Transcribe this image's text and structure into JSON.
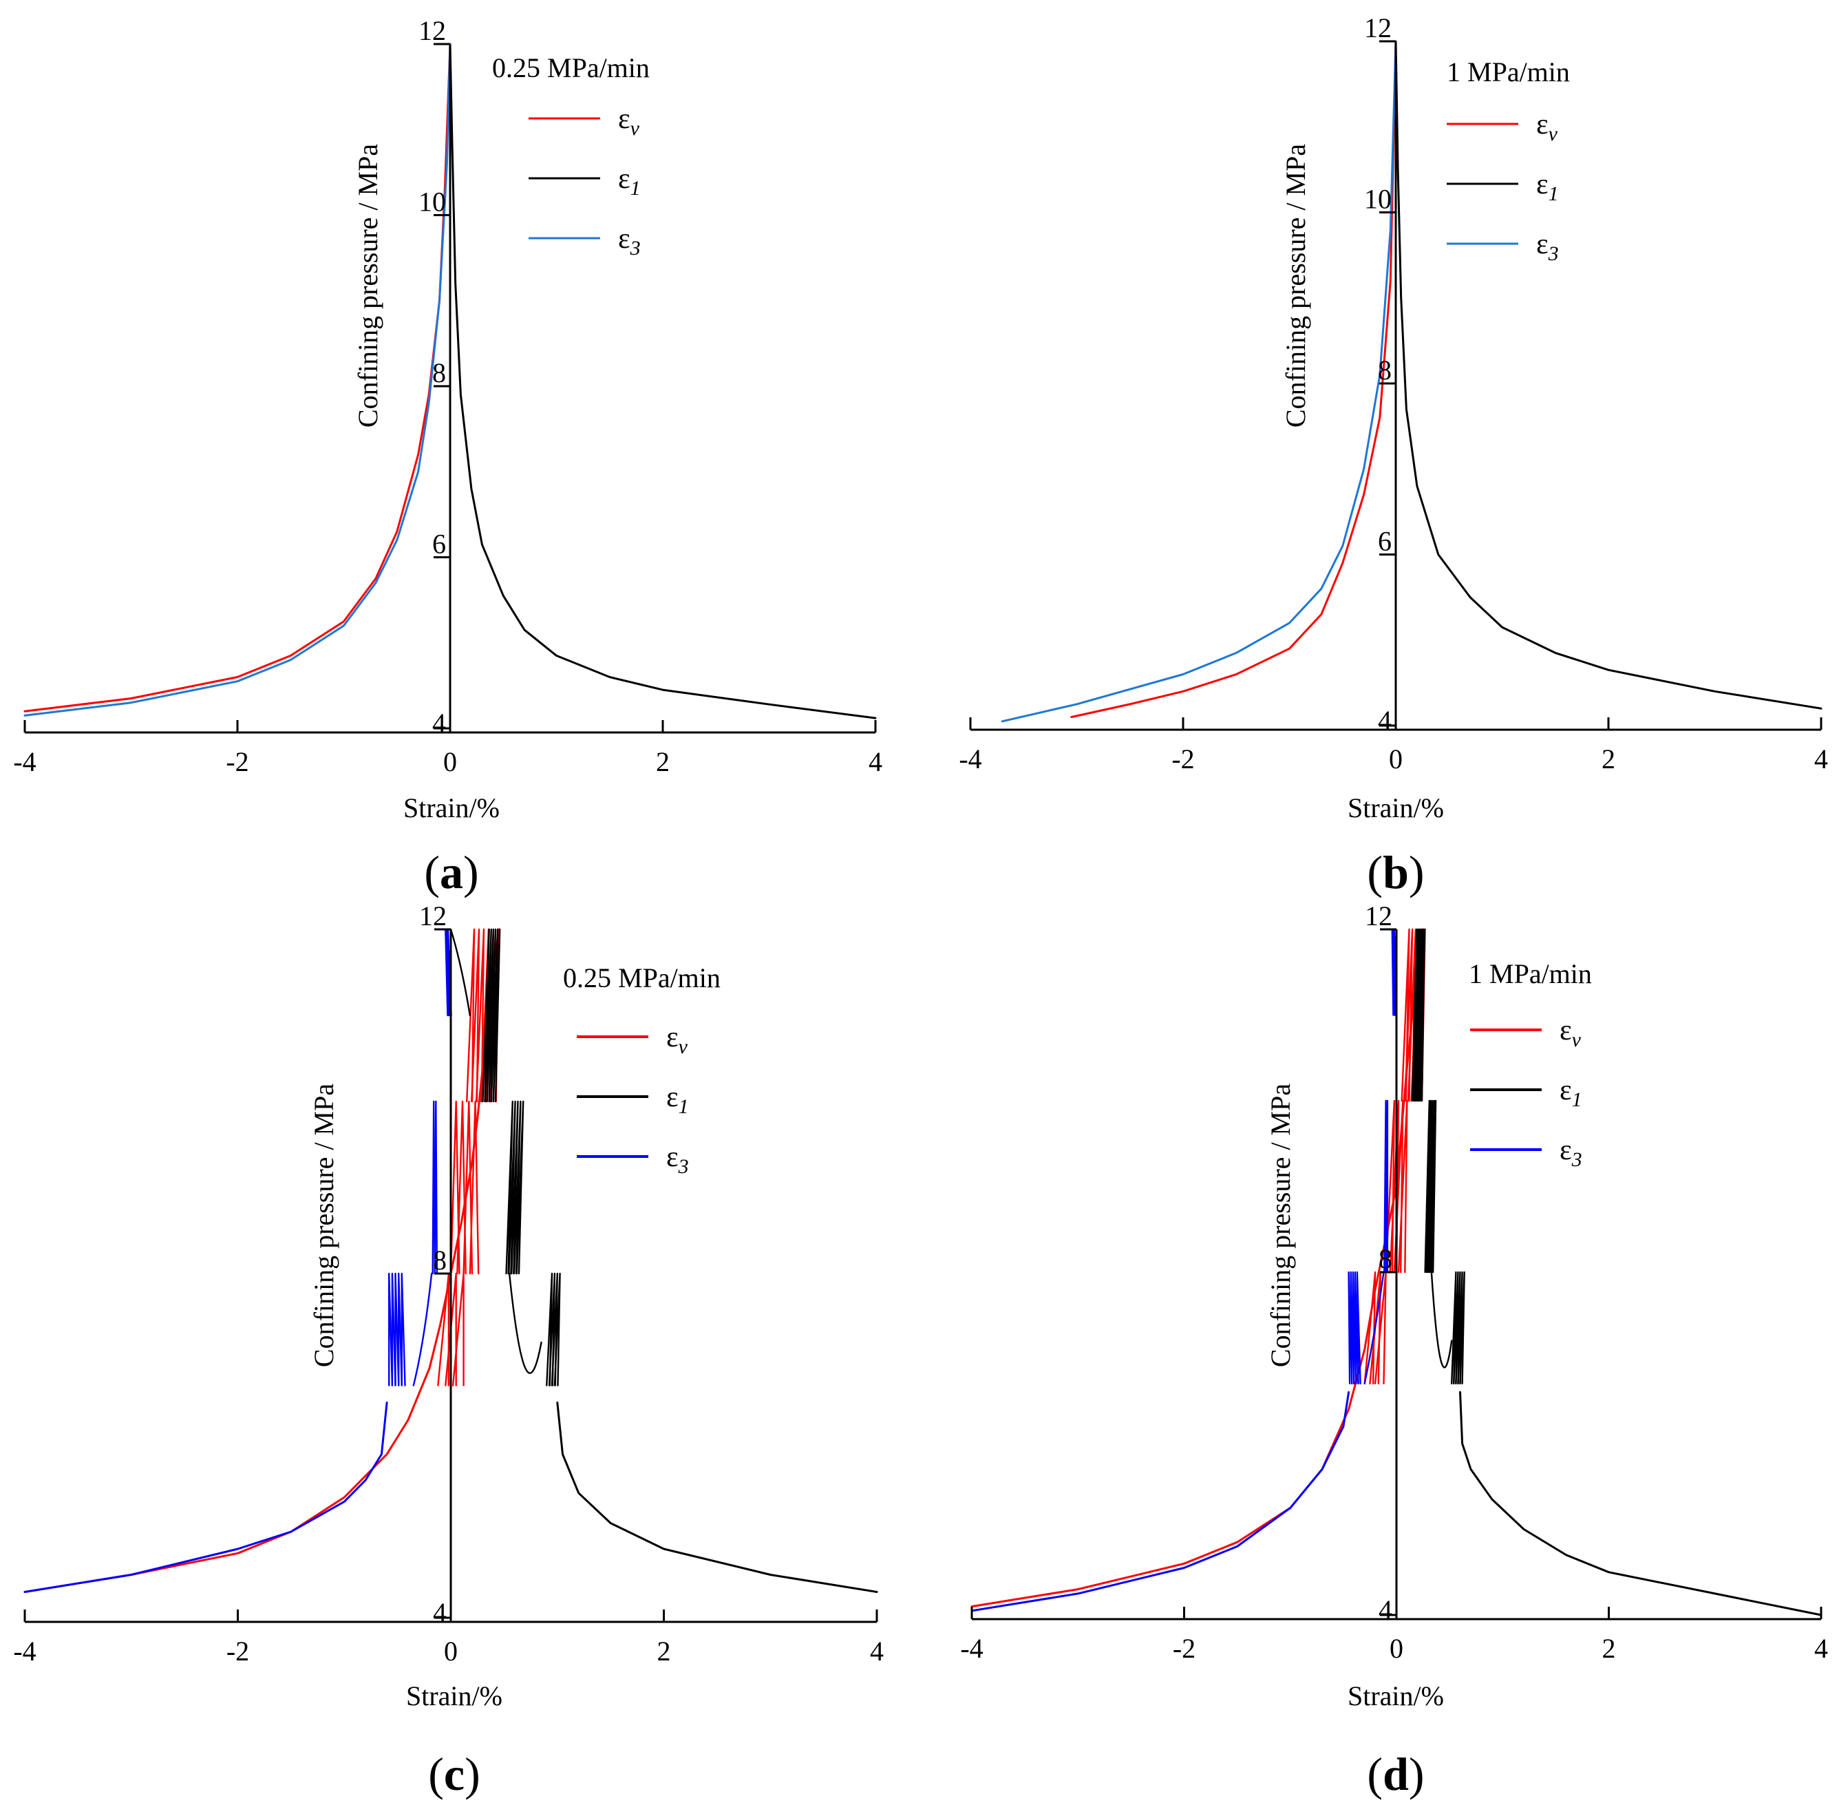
{
  "chart_data": [
    {
      "type": "line",
      "panel_label": "a",
      "rate_label": "0.25 MPa/min",
      "xlabel": "Strain/%",
      "ylabel": "Confining pressure / MPa",
      "xlim": [
        -4,
        4
      ],
      "ylim": [
        4,
        12
      ],
      "xticks": [
        -4,
        -2,
        0,
        2,
        4
      ],
      "yticks": [
        4,
        6,
        8,
        10,
        12
      ],
      "cyclic": false,
      "series": [
        {
          "name": "ε_v",
          "symbol": "ε",
          "sub": "v",
          "color": "#ff0000",
          "x": [
            -4,
            -3,
            -2,
            -1.5,
            -1,
            -0.7,
            -0.5,
            -0.3,
            -0.2,
            -0.1,
            -0.05,
            0
          ],
          "y": [
            4.2,
            4.35,
            4.6,
            4.85,
            5.25,
            5.75,
            6.3,
            7.2,
            7.9,
            9.0,
            10.3,
            12
          ]
        },
        {
          "name": "ε_1",
          "symbol": "ε",
          "sub": "1",
          "color": "#000000",
          "x": [
            0,
            0.02,
            0.05,
            0.1,
            0.2,
            0.3,
            0.5,
            0.7,
            1.0,
            1.5,
            2.0,
            3.0,
            4.0
          ],
          "y": [
            12,
            10.8,
            9.2,
            7.9,
            6.8,
            6.15,
            5.55,
            5.15,
            4.85,
            4.6,
            4.45,
            4.28,
            4.12
          ]
        },
        {
          "name": "ε_3",
          "symbol": "ε",
          "sub": "3",
          "color": "#1f77d4",
          "x": [
            -4,
            -3,
            -2,
            -1.5,
            -1,
            -0.7,
            -0.5,
            -0.3,
            -0.2,
            -0.1,
            -0.03,
            0
          ],
          "y": [
            4.15,
            4.3,
            4.55,
            4.8,
            5.2,
            5.7,
            6.2,
            7.0,
            7.8,
            9.0,
            10.6,
            12
          ]
        }
      ]
    },
    {
      "type": "line",
      "panel_label": "b",
      "rate_label": "1 MPa/min",
      "xlabel": "Strain/%",
      "ylabel": "Confining pressure / MPa",
      "xlim": [
        -4,
        4
      ],
      "ylim": [
        4,
        12
      ],
      "xticks": [
        -4,
        -2,
        0,
        2,
        4
      ],
      "yticks": [
        4,
        6,
        8,
        10,
        12
      ],
      "cyclic": false,
      "series": [
        {
          "name": "ε_v",
          "symbol": "ε",
          "sub": "v",
          "color": "#ff0000",
          "x": [
            -3.05,
            -2.5,
            -2,
            -1.5,
            -1,
            -0.7,
            -0.5,
            -0.3,
            -0.15,
            -0.05,
            0
          ],
          "y": [
            4.1,
            4.25,
            4.4,
            4.6,
            4.9,
            5.3,
            5.9,
            6.7,
            7.6,
            9.2,
            12
          ]
        },
        {
          "name": "ε_1",
          "symbol": "ε",
          "sub": "1",
          "color": "#000000",
          "x": [
            0,
            0.02,
            0.05,
            0.1,
            0.2,
            0.4,
            0.7,
            1.0,
            1.5,
            2.0,
            3.0,
            4.0
          ],
          "y": [
            12,
            10.5,
            9.0,
            7.7,
            6.8,
            6.0,
            5.5,
            5.15,
            4.85,
            4.65,
            4.4,
            4.2
          ]
        },
        {
          "name": "ε_3",
          "symbol": "ε",
          "sub": "3",
          "color": "#1f77d4",
          "x": [
            -3.7,
            -3,
            -2,
            -1.5,
            -1,
            -0.7,
            -0.5,
            -0.3,
            -0.15,
            -0.05,
            0
          ],
          "y": [
            4.05,
            4.25,
            4.6,
            4.85,
            5.2,
            5.6,
            6.1,
            7.0,
            8.1,
            9.8,
            12
          ]
        }
      ]
    },
    {
      "type": "line",
      "panel_label": "c",
      "rate_label": "0.25 MPa/min",
      "xlabel": "Strain/%",
      "ylabel": "Confining pressure / MPa",
      "xlim": [
        -4,
        4
      ],
      "ylim": [
        4,
        12
      ],
      "xticks": [
        -4,
        -2,
        0,
        2,
        4
      ],
      "yticks": [
        4,
        8,
        12
      ],
      "cyclic": true,
      "series": [
        {
          "name": "ε_v",
          "symbol": "ε",
          "sub": "v",
          "color": "#ff0000",
          "x": [
            -4,
            -3,
            -2,
            -1.5,
            -1,
            -0.6,
            -0.4,
            -0.2,
            -0.1,
            0.0,
            0.1,
            0.2,
            0.25,
            0.3,
            0.35,
            0.4,
            0.45
          ],
          "y": [
            4.3,
            4.5,
            4.75,
            5.0,
            5.4,
            5.9,
            6.3,
            6.9,
            7.4,
            8.0,
            8.6,
            9.3,
            9.8,
            10.4,
            11.0,
            11.5,
            12
          ]
        },
        {
          "name": "ε_1",
          "symbol": "ε",
          "sub": "1",
          "color": "#000000",
          "x": [
            1.0,
            1.05,
            1.2,
            1.5,
            2.0,
            3.0,
            4.0
          ],
          "y": [
            6.5,
            5.9,
            5.45,
            5.1,
            4.8,
            4.5,
            4.3
          ]
        },
        {
          "name": "ε_3",
          "symbol": "ε",
          "sub": "3",
          "color": "#0000ff",
          "x": [
            -4,
            -3,
            -2,
            -1.5,
            -1,
            -0.8,
            -0.65,
            -0.6
          ],
          "y": [
            4.3,
            4.5,
            4.8,
            5.0,
            5.35,
            5.6,
            5.9,
            6.5
          ]
        }
      ]
    },
    {
      "type": "line",
      "panel_label": "d",
      "rate_label": "1 MPa/min",
      "xlabel": "Strain/%",
      "ylabel": "Confining pressure / MPa",
      "xlim": [
        -4,
        4
      ],
      "ylim": [
        4,
        12
      ],
      "xticks": [
        -4,
        -2,
        0,
        2,
        4
      ],
      "yticks": [
        4,
        8,
        12
      ],
      "cyclic": true,
      "series": [
        {
          "name": "ε_v",
          "symbol": "ε",
          "sub": "v",
          "color": "#ff0000",
          "x": [
            -4,
            -3,
            -2,
            -1.5,
            -1,
            -0.7,
            -0.45,
            -0.3,
            -0.2,
            -0.1,
            0.0,
            0.05,
            0.1,
            0.15,
            0.2,
            0.25
          ],
          "y": [
            4.1,
            4.3,
            4.6,
            4.85,
            5.25,
            5.7,
            6.4,
            7.1,
            7.8,
            8.4,
            9.0,
            9.7,
            10.4,
            11.0,
            11.5,
            12
          ]
        },
        {
          "name": "ε_1",
          "symbol": "ε",
          "sub": "1",
          "color": "#000000",
          "x": [
            0.6,
            0.62,
            0.7,
            0.9,
            1.2,
            1.6,
            2.0,
            3.0,
            4.0
          ],
          "y": [
            6.6,
            6.0,
            5.7,
            5.35,
            5.0,
            4.7,
            4.5,
            4.25,
            4.0
          ]
        },
        {
          "name": "ε_3",
          "symbol": "ε",
          "sub": "3",
          "color": "#0000ff",
          "x": [
            -4,
            -3,
            -2,
            -1.5,
            -1,
            -0.7,
            -0.5,
            -0.45
          ],
          "y": [
            4.05,
            4.25,
            4.55,
            4.8,
            5.25,
            5.7,
            6.2,
            6.6
          ]
        }
      ]
    }
  ]
}
